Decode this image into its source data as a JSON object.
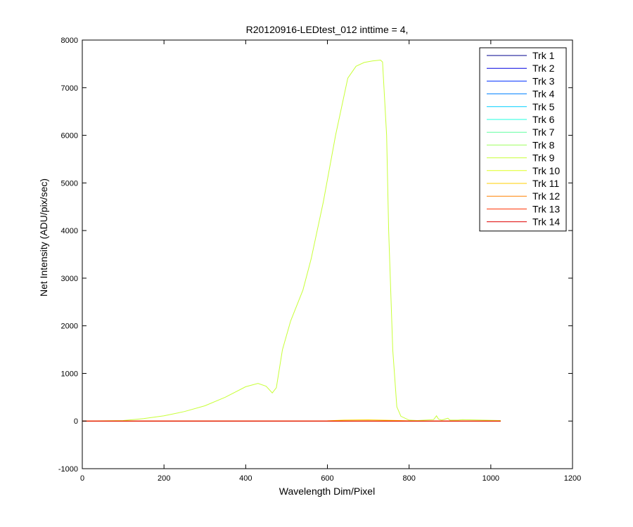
{
  "chart_data": {
    "type": "line",
    "title": "R20120916-LEDtest_012 inttime = 4,",
    "xlabel": "Wavelength Dim/Pixel",
    "ylabel": "Net Intensity (ADU/pix/sec)",
    "xlim": [
      0,
      1200
    ],
    "ylim": [
      -1000,
      8000
    ],
    "xticks": [
      0,
      200,
      400,
      600,
      800,
      1000,
      1200
    ],
    "yticks": [
      -1000,
      0,
      1000,
      2000,
      3000,
      4000,
      5000,
      6000,
      7000,
      8000
    ],
    "legend_position": "top-right",
    "grid": false,
    "series": [
      {
        "name": "Trk 1",
        "color": "#00008f",
        "x": [
          0,
          1024
        ],
        "y": [
          0,
          0
        ]
      },
      {
        "name": "Trk 2",
        "color": "#0000df",
        "x": [
          0,
          1024
        ],
        "y": [
          0,
          0
        ]
      },
      {
        "name": "Trk 3",
        "color": "#0030ff",
        "x": [
          0,
          1024
        ],
        "y": [
          0,
          0
        ]
      },
      {
        "name": "Trk 4",
        "color": "#0080ff",
        "x": [
          0,
          1024
        ],
        "y": [
          0,
          0
        ]
      },
      {
        "name": "Trk 5",
        "color": "#00cfff",
        "x": [
          0,
          1024
        ],
        "y": [
          0,
          0
        ]
      },
      {
        "name": "Trk 6",
        "color": "#20ffdf",
        "x": [
          0,
          1024
        ],
        "y": [
          0,
          0
        ]
      },
      {
        "name": "Trk 7",
        "color": "#60ff9f",
        "x": [
          0,
          1024
        ],
        "y": [
          0,
          0
        ]
      },
      {
        "name": "Trk 8",
        "color": "#9fff60",
        "x": [
          0,
          1024
        ],
        "y": [
          0,
          0
        ]
      },
      {
        "name": "Trk 9",
        "color": "#c8ff38",
        "x": [
          0,
          100,
          150,
          200,
          250,
          300,
          350,
          400,
          430,
          450,
          465,
          475,
          490,
          510,
          540,
          560,
          590,
          620,
          650,
          670,
          690,
          710,
          730,
          735,
          745,
          750,
          760,
          770,
          780,
          800,
          820,
          860,
          867,
          872,
          880,
          895,
          900,
          920,
          930,
          1024
        ],
        "y": [
          0,
          10,
          50,
          110,
          200,
          320,
          500,
          720,
          790,
          730,
          590,
          700,
          1500,
          2100,
          2750,
          3400,
          4600,
          6000,
          7200,
          7450,
          7530,
          7560,
          7580,
          7540,
          6000,
          4000,
          1500,
          300,
          100,
          20,
          10,
          30,
          110,
          40,
          20,
          60,
          20,
          20,
          30,
          10
        ]
      },
      {
        "name": "Trk 10",
        "color": "#dfff20",
        "x": [
          0,
          1024
        ],
        "y": [
          0,
          0
        ]
      },
      {
        "name": "Trk 11",
        "color": "#ffcf00",
        "x": [
          0,
          600,
          640,
          700,
          760,
          800,
          1024
        ],
        "y": [
          0,
          5,
          20,
          25,
          15,
          5,
          0
        ]
      },
      {
        "name": "Trk 12",
        "color": "#ff8000",
        "x": [
          0,
          1024
        ],
        "y": [
          0,
          0
        ]
      },
      {
        "name": "Trk 13",
        "color": "#ff3000",
        "x": [
          0,
          1024
        ],
        "y": [
          0,
          0
        ]
      },
      {
        "name": "Trk 14",
        "color": "#df0000",
        "x": [
          0,
          1024
        ],
        "y": [
          0,
          0
        ]
      }
    ]
  }
}
